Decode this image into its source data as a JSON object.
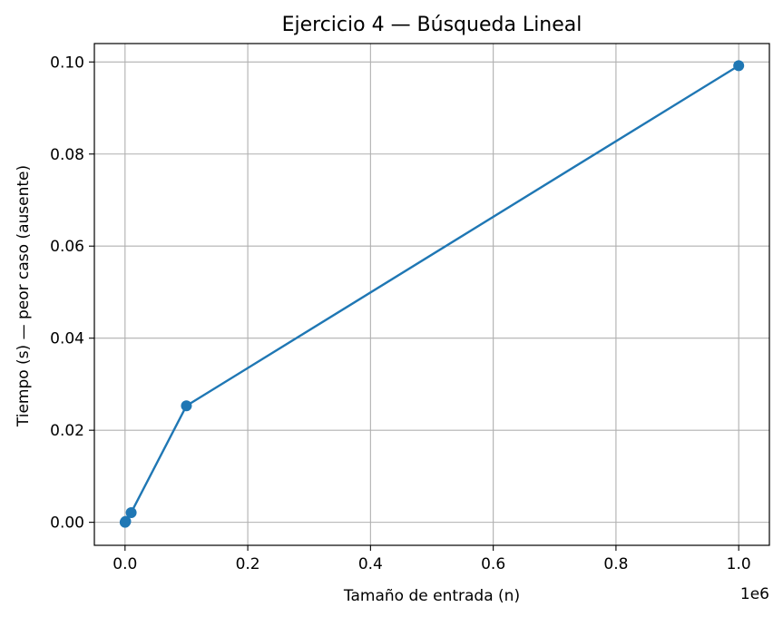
{
  "chart_data": {
    "type": "line",
    "title": "Ejercicio 4 — Búsqueda Lineal",
    "xlabel": "Tamaño de entrada (n)",
    "ylabel": "Tiempo (s) — peor caso (ausente)",
    "x_offset_label": "1e6",
    "x_ticks": [
      0.0,
      0.2,
      0.4,
      0.6,
      0.8,
      1.0
    ],
    "x_tick_labels": [
      "0.0",
      "0.2",
      "0.4",
      "0.6",
      "0.8",
      "1.0"
    ],
    "y_ticks": [
      0.0,
      0.02,
      0.04,
      0.06,
      0.08,
      0.1
    ],
    "y_tick_labels": [
      "0.00",
      "0.02",
      "0.04",
      "0.06",
      "0.08",
      "0.10"
    ],
    "xlim": [
      -0.05,
      1.05
    ],
    "ylim": [
      -0.005,
      0.104
    ],
    "grid": true,
    "series": [
      {
        "color": "#1f77b4",
        "marker": "circle",
        "x": [
          0.0001,
          0.001,
          0.01,
          0.1,
          1.0
        ],
        "y": [
          0.0,
          0.0002,
          0.0021,
          0.0253,
          0.0992
        ]
      }
    ]
  }
}
